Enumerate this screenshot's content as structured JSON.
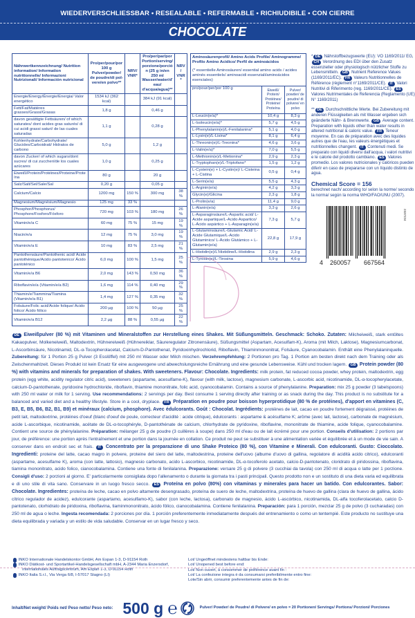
{
  "banner": {
    "top": "WIEDERVERSCHLIESSBAR • RESEALABLE • REFERMABLE • RICHIUDIBILE • CON CIERRE",
    "flavour": "CHOCOLATE",
    "color": "#1b4595"
  },
  "nutrition": {
    "headers": [
      "Nährwertkennzeichnung/ Nutrition information/ Information nutritionnelle/ Informazioni Nutrizionali/ Información nutricional",
      "Pro/per/pour/por 100 g Pulver/powder/ de poudre/di pol- vere/en polvo**",
      "NRV/ VNR*",
      "Pro/per/par/por Portion/serving/ porzione/porción (25 g in/en 250 ml Wasser/water/d'eau/ d'acqua/agua)**",
      "NRV/ VNR*"
    ],
    "rows": [
      [
        "Energie/Energy/Énergie/Energia/ Valor energético",
        "1534 kJ (362 kcal)",
        "",
        "384 kJ (91 kcal)",
        ""
      ],
      [
        "Fett/Fat/Matières grasses/Grassi/Grasas",
        "1,8 g",
        "",
        "0,46 g",
        ""
      ],
      [
        "davon gesättigte Fettsäuren/ of which saturates/ dont acides gras saturés/ di cui acidi grassi saturi/ de las cuales saturadas",
        "1,1 g",
        "",
        "0,28 g",
        ""
      ],
      [
        "Kohlenhydrate/Carbohydrate/ Glucides/Carboidrati/ Hidratos de carbono",
        "5,0 g",
        "",
        "1,2 g",
        ""
      ],
      [
        "davon Zucker/ of which sugars/dont sucres/ di cui zuccheri/de los cuales azúcares",
        "1,0 g",
        "",
        "0,25 g",
        ""
      ],
      [
        "Eiweiß/Protein/Protéines/Proteine/Proteína",
        "80 g",
        "",
        "20 g",
        ""
      ],
      [
        "Salz/Salt/Sel/Sale/Sal",
        "0,20 g",
        "",
        "0,05 g",
        ""
      ],
      [
        "Calcium/Calcio",
        "1200 mg",
        "150 %",
        "300 mg",
        "38 %"
      ],
      [
        "Magnesium/Magnésium/Magnesio",
        "125 mg",
        "33 %",
        "",
        ""
      ],
      [
        "Phosphor/Phosphorus/ Phosphore/Fosforo/Fósforo",
        "720 mg",
        "103 %",
        "180 mg",
        "26 %"
      ],
      [
        "Vitamin/e/a C",
        "60 mg",
        "75 %",
        "15 mg",
        "19 %"
      ],
      [
        "Niacin/e/a",
        "12 mg",
        "75 %",
        "3,0 mg",
        "19 %"
      ],
      [
        "Vitamin/e/a E",
        "10 mg",
        "83 %",
        "2,5 mg",
        "21 %"
      ],
      [
        "Pantothensäure/Pantothenic acid/ Acide pantothénique/Acido pantotenico/ Ácido pantoténico",
        "6,0 mg",
        "100 %",
        "1,5 mg",
        "25 %"
      ],
      [
        "Vitamin/e/a B6",
        "2,0 mg",
        "143 %",
        "0,50 mg",
        "36 %"
      ],
      [
        "Riboflavin/e/a (Vitamin/e/a B2)",
        "1,6 mg",
        "114 %",
        "0,40 mg",
        "29 %"
      ],
      [
        "Thiamin/e/Tiammina/Tiamina (Vitamin/e/a B1)",
        "1,4 mg",
        "127 %",
        "0,35 mg",
        "32 %"
      ],
      [
        "Folsäure/Folic acid/Acide folique/ Acido folico/ Ácido fólico",
        "200 µg",
        "100 %",
        "50 µg",
        "25 %"
      ],
      [
        "Vitamin/e/a B12",
        "2,2 µg",
        "88 %",
        "0,55 µg",
        "22 %"
      ]
    ]
  },
  "amino": {
    "title": "Aminosäurenprofil/ Amino Acids Profile/ Aminogramme/ Profilo Amino Acidico/ Perfil de aminoácidos",
    "note": "(* essentielle Aminosäuren/ essential amino acids / acides aminés essentiels/ aminoacidi essenziali/aminoácidos esenciales)",
    "per": "pro/pour/per/por 100 g",
    "col_protein": "Eiweiß/ Protein/ Protéines/ Proteine/ Proteína",
    "col_powder": "Pulver/ powder/ de poudre/ di polvere/ en polvo",
    "rows": [
      [
        "L-Leucin(e/a)*",
        "10,4 g",
        "8,3 g"
      ],
      [
        "L-Isoleucin(e/a)*",
        "5,7 g",
        "4,5 g"
      ],
      [
        "L-Phenylalanin(e)/L-Fenilalanina*",
        "5,1 g",
        "4,0 g"
      ],
      [
        "L-Lysin(e)/L-Lisina*",
        "8,1 g",
        "6,4 g"
      ],
      [
        "L-Threonin(e)/L-Treonina*",
        "4,6 g",
        "3,6 g"
      ],
      [
        "L-Valin(e/a)*",
        "7,0 g",
        "5,5 g"
      ],
      [
        "L-Methionin(e)/L-Metionina*",
        "2,9 g",
        "2,3 g"
      ],
      [
        "L-Tryptophan(e)/L-Triptofano*",
        "1,5 g",
        "1,2 g"
      ],
      [
        "L-Cystein(e) + L-Cystin(e)/ L-Cisteina + L-Cistina",
        "0,5 g",
        "0,4 g"
      ],
      [
        "L-Serin(e/a)",
        "5,5 g",
        "4,3 g"
      ],
      [
        "L-Arginin(e/a)",
        "4,2 g",
        "3,3 g"
      ],
      [
        "Glycin(e)/Glicina",
        "2,3 g",
        "1,8 g"
      ],
      [
        "L-Prolin(e/a)",
        "11,4 g",
        "9,0 g"
      ],
      [
        "L-Alanin(e/a)",
        "3,3 g",
        "2,6 g"
      ],
      [
        "L-Asparaginsäure/L-Aspartic acid/ L-Acide aspartique/L-Acido Aspartico/ L-Ácido aspártico + L-Asparagin(e/a)",
        "7,3 g",
        "5,7 g"
      ],
      [
        "L-Glutaminsäure/L-Glutamic Acid/ L-Acide Glutamique/L-Acido Glutaminico/ L-Ácido Glutámico + L-Glutamin(e/a)",
        "22,8 g",
        "17,9 g"
      ],
      [
        "L-Histidin(e)/L'Histidine/L-Histidina",
        "2,9 g",
        "2,3 g"
      ],
      [
        "L-Tyrosin(e)/L-Tirosina",
        "5,9 g",
        "4,6 g"
      ]
    ]
  },
  "footnotes": {
    "nrv": [
      [
        "",
        "*"
      ],
      [
        "DE",
        "Nährstoffbezugswerte (EU): VO 1169/2011/ EG, "
      ],
      [
        "CH",
        "Verordnung des EDI über den Zusatz essenzieller oder physiologisch nützlicher Stoffe zu Lebensmitteln. "
      ],
      [
        "GB",
        "Nutrient Reference Values (1169/2011/EC). "
      ],
      [
        "FR",
        "Valeurs Nutritionnelles de Référence (règlement n°1169/2011/CE). "
      ],
      [
        "IT",
        "Valori Nutritivi di Riferimento (reg. 1169/2011/CE). "
      ],
      [
        "ES",
        "Valores Nutrimentales de Referencia (Reglamento (UE) N° 1169/2011)"
      ]
    ],
    "avg": [
      [
        "",
        "**"
      ],
      [
        "DE",
        "Durchschnittliche Werte. Bei Zubereitung mit anderen Flüssigkeiten als mit Wasser ergeben sich geänderte Nähr- & Brennwerte. "
      ],
      [
        "GB",
        "Average content. Preparation with liquids other than water results in altered nutritional & caloric value. "
      ],
      [
        "FR",
        "Teneur moyenne. En cas de préparation avec des liquides autres que de l'eau, les valeurs énergétiques et nutritionnelles changent. "
      ],
      [
        "IT",
        "Contenuti medi. Se preparato con liquidi diversi dall'acqua, i valori nutritivi e le calorie del prodotto cambiano. "
      ],
      [
        "ES",
        "Valores promedio. Los valores nutricionales y calóricos pueden diferir en caso de prepararse con un líquido distinto de agua."
      ]
    ],
    "chemical_score": "Chemical Score = 156",
    "chemical_note": "berechnet nach/ according to/ selon la norme/ secondo la norma/ según la norma WHO/FAO/UNU (2007)."
  },
  "barcode": {
    "first": "4",
    "left": "260057",
    "right": "667564",
    "code": "2337224"
  },
  "ingredients": [
    {
      "lang": "DE",
      "segs": [
        [
          "t",
          "Eiweißpulver (80 %) mit Vitaminen und Mineralstoffen zur Herstellung eines Shakes. Mit Süßungsmitteln. Geschmack: Schoko. Zutaten: "
        ],
        [
          "n",
          "Milcheiweiß, stark entöltes Kakaopulver, Molkeneiweiß, Maltodextrin, Hühnereiweiß (Hühnereiklar, Säureregulator Zitronensäure), Süßungsmittel (Aspartam, Acesulfam-K), Aroma (mit Milch, Laktose), Magnesiumcarbonat, L-Ascorbinsäure, Nicotinamid, DL-α-Tocopherolacetat, Calcium-D-Pantothenat, Pyridoxinhydrochlorid, Riboflavin, Thiaminmononitrat, Folsäure, Cyanocobalamin. Enthält eine Phenylalaninquelle. "
        ],
        [
          "b",
          "Zubereitung: "
        ],
        [
          "n",
          "für 1 Portion 25 g Pulver (3 Esslöffel) mit 250 ml Wasser oder Milch mischen. "
        ],
        [
          "b",
          "Verzehrempfehlung: "
        ],
        [
          "n",
          "2 Portionen pro Tag. 1 Portion am besten direkt nach dem Training oder als Zwischenmahlzeit. Dieses Produkt ist kein Ersatz für eine ausgewogene und abwechslungsreiche Ernährung und eine gesunde Lebensweise. Kühl und trocken lagern. "
        ]
      ]
    },
    {
      "lang": "GB",
      "segs": [
        [
          "t",
          "Protein powder (80 %) with vitamins and minerals for preparation of shakes. With sweeteners. Flavour: Chocolate. Ingredients: "
        ],
        [
          "n",
          "milk protein, fat reduced cocoa powder, whey protein, maltodextrin, egg protein (egg white, acidity regulator citric acid), sweeteners (aspartame, acesulfame-K), flavour (with milk, lactose), magnesium carbonate, L-ascorbic acid, nicotinamide, DL-α-tocopherylacetate, calcium-D-pantothenate, pyridoxine hydrochloride, riboflavin, thiamine mononitrate, folic acid, cyanocobalamin. Contains a source of phenylalanine. "
        ],
        [
          "b",
          "Preparation: "
        ],
        [
          "n",
          "mix 25 g powder (3 tabelspoons) with 250 ml water or milk for 1 serving. "
        ],
        [
          "b",
          "Use recommendations: "
        ],
        [
          "n",
          "2 servings per day. Best consume 1 serving directly after training or as snack during the day. This product is no substitute for a balanced and varied diet and a healthy lifestyle. Store in a cool, dryplace. "
        ]
      ]
    },
    {
      "lang": "FR",
      "segs": [
        [
          "t",
          "Préparation en poudre pour boisson hyperprotidique (80 % de protéines), d'apport en vitamines (C, B3, E, B5, B6, B2, B1, B9) et minéraux (calcium, phosphore). Avec édulcorants. Goût : Chocolat. Ingrédients: "
        ],
        [
          "n",
          "protéines de lait, cacao en poudre fortement dégraissé, protéines de petit lait, maltodextrine, protéines d'oeuf (blanc d'oeuf de poule, correcteur d'acidité : acide citrique), édulcorants : aspartame & acésulfame K; arôme (avec lait, lactose), carbonate de magnésium, acide L-ascorbique, nicotinamide, acétate de DL-α-tocophéryle, D-pantothénate de calcium, chlorhydrate de pyridoxine, riboflavine, mononitrate de thiamine, acide folique, cyanocobalamine. Contient une source de phénylalanine. "
        ],
        [
          "b",
          "Préparation: "
        ],
        [
          "n",
          "mélanger 25 g de poudre (3 cuillères à soupe) dans 250 ml d'eau ou de lait écrémé pour une portion. "
        ],
        [
          "b",
          "Conseils d'utilisation: "
        ],
        [
          "n",
          "2 portions par jour, de préférence: une portion après l'entraînement et une portion dans la journée en collation. Ce produit ne peut se substituer à une alimentation variée et équilibrée et à un mode de vie sain. A conserver dans en endroit sec et frais. "
        ]
      ]
    },
    {
      "lang": "IT",
      "segs": [
        [
          "t",
          "Concentrato per la preparazione di uno Shake Proteico (80 %), con Vitamine e Minerali. Con edulcoranti. Gusto: Cioccolato. Ingredienti: "
        ],
        [
          "n",
          "proteine del latte, cacao magro in polvere, proteine del siero del latte, maltodestrina, proteine dell'uovo (albume d'uovo di gallina, regolatore di acidità acido citrico), edulcoranti (aspartame, acesulfame K), aroma (con latte, lattosio), magnesio carbonato, acido L-ascorbico, nicotinamide, DL-α-tocoferolo acetato, calcio-D-pantotenato, cloridrato di piridossina, riboflavina, tiamina mononitrato, acido folico, cianocobalamina. Contiene una fonte di fenilalanina. "
        ],
        [
          "b",
          "Preparazione: "
        ],
        [
          "n",
          "versare 25 g di polvere (3 cucchiai da tavola) con 250 ml di acqua o latte per 1 porzione. "
        ],
        [
          "b",
          "Consigli d'uso: "
        ],
        [
          "n",
          "2 porzioni al giorno. E' particolarmente consigliata dopo l'allenamento o durante la giornata tra i pasti principali. Questo prodotto non e un sostituto di una dieta varia ed equilibrata e di uno stile di vita sano. Conservare in un luogo fresco secco. "
        ]
      ]
    },
    {
      "lang": "ES",
      "segs": [
        [
          "t",
          "Proteína en polvo (80%) con vitaminas y minerales para hacer un batido. Con edulcorantes. Sabor: Chocolate. Ingredientes: "
        ],
        [
          "n",
          "proteína de leche, cacao en polvo altamente desengrasado, proteína de suero de leche, maltodextrina, proteína de huevo de gallina (clara de huevo de gallina, ácido cítrico regulador de acidez), edulcorante (aspartamo, acesulfamo-K), sabor (con leche, lactosa), carbonato de magnesio, ácido L-ascórbico, nicotinamida, DL-alfa tocoferolacetato, calcio D-pantotenato, clorhidrato de piridoxina, riboflavina, tiaminmononitrato, ácido fólico, cianocobalamina. Contiene fenilalanina. "
        ],
        [
          "b",
          "Preparación: "
        ],
        [
          "n",
          "para 1 porción, mezclar 25 g de polvo (3 cucharadas) con 250 ml de agua o leche. "
        ],
        [
          "b",
          "Ingesta recomendada: "
        ],
        [
          "n",
          "2 porciones por día. 1 porción preferentemente inmediatamente después del entrenamiento o como un tentempié. Este producto no sustituye una dieta equilibrada y variada y un estilo de vida saludable. Conservar en un lugar fresco y seco."
        ]
      ]
    }
  ],
  "addresses": [
    {
      "lang": "DE",
      "text": "INKO Internationale Handelskontor GmbH, Am Espan 1-3, D-91154 Roth"
    },
    {
      "lang": "AT",
      "text": "INKO Diätkost- und Sportartikel-Handelsgesellschaft mbH, A-2344 Maria Enzersdorf, Internationales Auftragscentrum, Am Espan 1-3, D-91154 Roth"
    },
    {
      "lang": "IT",
      "text": "INKO Italia S.r.l., Via Verga 6/8, I-57017 Stagno (LI)"
    }
  ],
  "lot": [
    "Lot/ Ungeöffnet mindestens haltbar bis Ende:",
    "Lot/ Unopened best before end:",
    "Lot/ Non ouvert, à consommer de préférence avant fin :",
    "Lot/ La confezione integra è da consumarsi preferibilmente entro fine:",
    "Lote/Sin abrir, consumir preferentemente antes de fin de:"
  ],
  "net": {
    "label": "Inhalt/Net weight/ Poids net/ Peso netto/ Peso neto:",
    "weight": "500 g",
    "estimated_sign": "℮",
    "portions": "Pulver/ Powder/ de Poudre/ di Polvere/ en polvo = 20 Portionen/ Servings/ Portions/ Porzioni/ Porciones",
    "icon": "green-dot-recycle-icon"
  }
}
